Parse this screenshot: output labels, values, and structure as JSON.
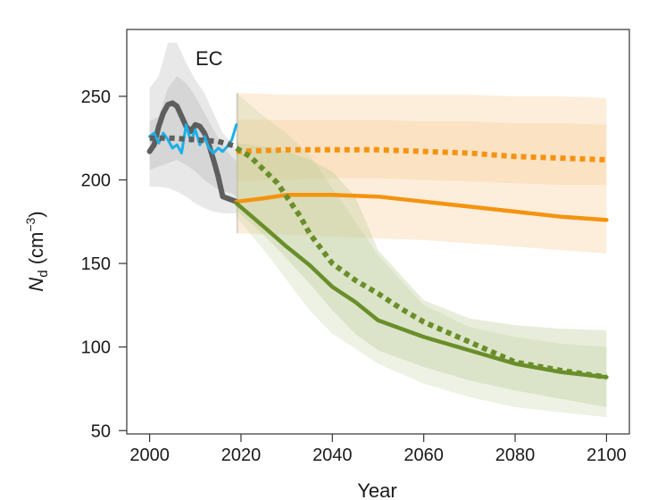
{
  "chart_data": {
    "type": "line",
    "panel_label": "EC",
    "xlabel": "Year",
    "ylabel": {
      "main": "N",
      "sub": "d",
      "unit_open": " (cm",
      "unit_exp": "−3",
      "unit_close": ")"
    },
    "xlim": [
      1995,
      2105
    ],
    "ylim": [
      48,
      290
    ],
    "xticks": [
      2000,
      2020,
      2040,
      2060,
      2080,
      2100
    ],
    "yticks": [
      50,
      100,
      150,
      200,
      250
    ],
    "colors": {
      "history_obs": "#1ab0e8",
      "history_model": "#5e5e5e",
      "orange": "#f5930f",
      "green": "#6a8e2a",
      "grey_band": "#b4b4b4",
      "orange_band": "#f9c78a",
      "green_band": "#b9cc95"
    },
    "bands": [
      {
        "name": "history-band-outer",
        "color_key": "grey_band",
        "opacity": 0.3,
        "x": [
          2000,
          2002,
          2004,
          2006,
          2008,
          2010,
          2012,
          2014,
          2016,
          2018,
          2019
        ],
        "upper": [
          255,
          262,
          282,
          282,
          270,
          260,
          252,
          240,
          228,
          222,
          218
        ],
        "lower": [
          196,
          196,
          195,
          193,
          190,
          186,
          183,
          181,
          180,
          180,
          180
        ]
      },
      {
        "name": "history-band-inner",
        "color_key": "grey_band",
        "opacity": 0.35,
        "x": [
          2000,
          2002,
          2004,
          2006,
          2008,
          2010,
          2012,
          2014,
          2016,
          2018,
          2019
        ],
        "upper": [
          235,
          238,
          255,
          262,
          258,
          250,
          240,
          230,
          220,
          214,
          211
        ],
        "lower": [
          206,
          208,
          210,
          212,
          209,
          205,
          200,
          196,
          193,
          192,
          190
        ]
      },
      {
        "name": "orange-band-outer",
        "color_key": "orange_band",
        "opacity": 0.3,
        "x": [
          2019,
          2030,
          2040,
          2050,
          2060,
          2070,
          2080,
          2090,
          2100
        ],
        "upper": [
          252,
          251,
          251,
          251,
          251,
          251,
          250,
          250,
          249
        ],
        "lower": [
          168,
          167,
          166,
          165,
          164,
          162,
          160,
          158,
          156
        ]
      },
      {
        "name": "orange-band-inner",
        "color_key": "orange_band",
        "opacity": 0.3,
        "x": [
          2019,
          2030,
          2040,
          2050,
          2060,
          2070,
          2080,
          2090,
          2100
        ],
        "upper": [
          236,
          236,
          236,
          236,
          235,
          235,
          234,
          234,
          233
        ],
        "lower": [
          199,
          200,
          201,
          201,
          200,
          199,
          198,
          197,
          197
        ]
      },
      {
        "name": "green-band-outer",
        "color_key": "green_band",
        "opacity": 0.25,
        "x": [
          2019,
          2025,
          2030,
          2035,
          2040,
          2050,
          2060,
          2070,
          2080,
          2090,
          2100
        ],
        "upper": [
          252,
          238,
          228,
          215,
          195,
          155,
          125,
          112,
          106,
          102,
          100
        ],
        "lower": [
          178,
          158,
          140,
          122,
          108,
          90,
          78,
          70,
          64,
          61,
          58
        ]
      },
      {
        "name": "green-band-inner",
        "color_key": "green_band",
        "opacity": 0.35,
        "x": [
          2019,
          2025,
          2030,
          2035,
          2040,
          2045,
          2050,
          2060,
          2070,
          2080,
          2090,
          2100
        ],
        "upper": [
          222,
          220,
          217,
          212,
          205,
          190,
          158,
          128,
          117,
          113,
          111,
          110
        ],
        "lower": [
          182,
          167,
          153,
          138,
          122,
          108,
          98,
          88,
          80,
          74,
          69,
          64
        ]
      },
      {
        "name": "divider-band",
        "color_key": "grey_band",
        "opacity": 0.45,
        "x": [
          2019,
          2019.4
        ],
        "upper": [
          252,
          252
        ],
        "lower": [
          168,
          168
        ]
      }
    ],
    "series": [
      {
        "name": "history-model",
        "color_key": "history_model",
        "width": 6,
        "dash": "",
        "x": [
          2000,
          2001,
          2002,
          2003,
          2004,
          2005,
          2006,
          2007,
          2008,
          2009,
          2010,
          2011,
          2012,
          2013,
          2014,
          2015,
          2016,
          2017,
          2018,
          2019
        ],
        "y": [
          217,
          221,
          232,
          240,
          245,
          246,
          244,
          238,
          232,
          229,
          233,
          232,
          228,
          221,
          212,
          202,
          190,
          189,
          188,
          187
        ]
      },
      {
        "name": "history-observed",
        "color_key": "history_obs",
        "width": 3,
        "dash": "",
        "x": [
          2000,
          2001,
          2002,
          2003,
          2004,
          2005,
          2006,
          2007,
          2008,
          2009,
          2010,
          2011,
          2012,
          2013,
          2014,
          2015,
          2016,
          2017,
          2018,
          2019
        ],
        "y": [
          226,
          228,
          222,
          228,
          224,
          219,
          221,
          216,
          233,
          223,
          230,
          221,
          226,
          219,
          216,
          219,
          217,
          220,
          224,
          233
        ]
      },
      {
        "name": "history-model-dotted",
        "color_key": "history_model",
        "width": 6,
        "dash": "6 5",
        "x": [
          2000,
          2005,
          2010,
          2015,
          2019
        ],
        "y": [
          225,
          225,
          224,
          223,
          220
        ]
      },
      {
        "name": "orange-dotted",
        "color_key": "orange",
        "width": 6,
        "dash": "6 5",
        "x": [
          2019,
          2030,
          2040,
          2050,
          2060,
          2070,
          2080,
          2090,
          2100
        ],
        "y": [
          217,
          218,
          218,
          218,
          217,
          216,
          214,
          213,
          212
        ]
      },
      {
        "name": "orange-solid",
        "color_key": "orange",
        "width": 4.5,
        "dash": "",
        "x": [
          2019,
          2025,
          2030,
          2035,
          2040,
          2050,
          2060,
          2070,
          2080,
          2090,
          2100
        ],
        "y": [
          187,
          189,
          191,
          191,
          191,
          190,
          187,
          184,
          181,
          178,
          176
        ]
      },
      {
        "name": "green-dotted",
        "color_key": "green",
        "width": 6,
        "dash": "6 5",
        "x": [
          2019,
          2022,
          2025,
          2028,
          2030,
          2033,
          2035,
          2040,
          2045,
          2050,
          2055,
          2060,
          2070,
          2080,
          2090,
          2100
        ],
        "y": [
          219,
          214,
          206,
          198,
          190,
          178,
          168,
          150,
          140,
          132,
          123,
          115,
          103,
          91,
          86,
          82
        ]
      },
      {
        "name": "green-solid",
        "color_key": "green",
        "width": 4.5,
        "dash": "",
        "x": [
          2019,
          2022,
          2025,
          2030,
          2035,
          2040,
          2045,
          2050,
          2060,
          2070,
          2080,
          2090,
          2100
        ],
        "y": [
          186,
          179,
          172,
          160,
          149,
          136,
          127,
          116,
          106,
          98,
          90,
          85,
          82
        ]
      }
    ]
  }
}
